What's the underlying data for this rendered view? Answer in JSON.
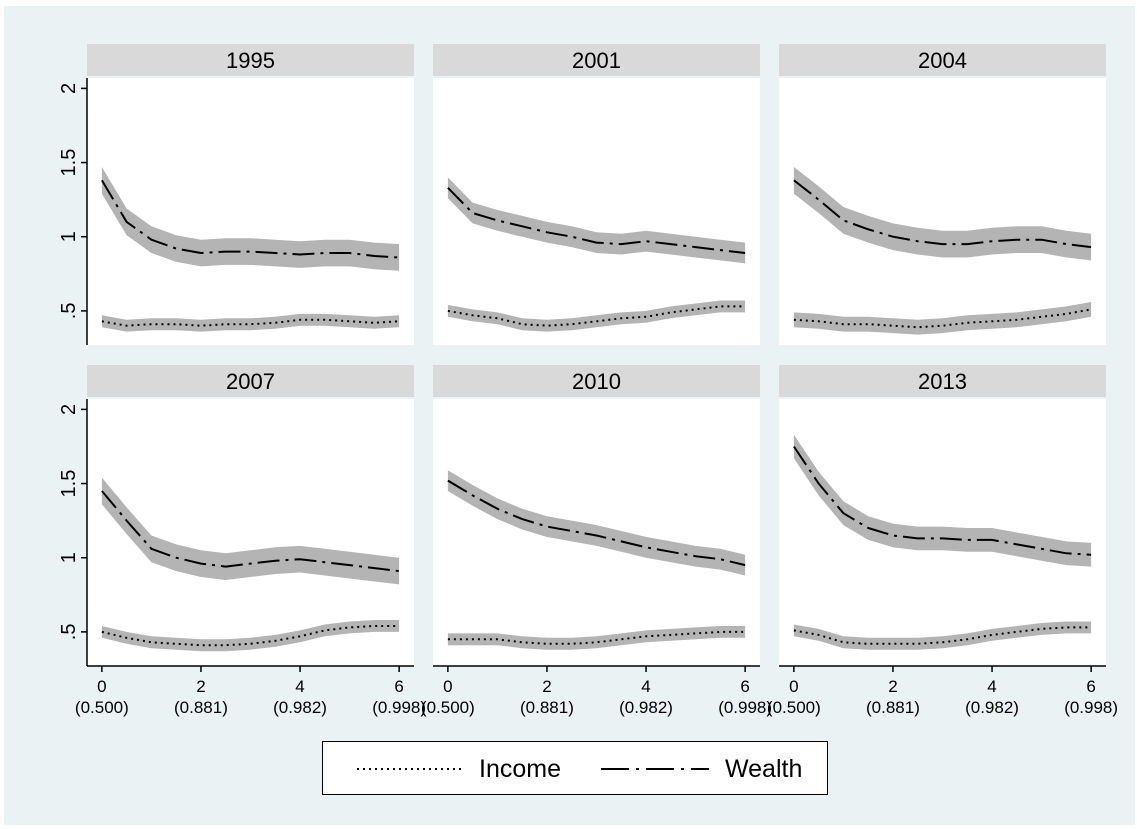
{
  "chart_data": {
    "type": "line",
    "layout": "small-multiples 2x3",
    "grid": false,
    "legend_position": "bottom",
    "colors": {
      "figure_background": "#eaf2f3",
      "panel_header": "#d9d9d9",
      "ci_band": "#b4b4b4",
      "line": "#000000"
    },
    "y_ticks": [
      ".5",
      "1",
      "1.5",
      "2"
    ],
    "y_tick_values": [
      0.5,
      1,
      1.5,
      2
    ],
    "ylim": [
      0.27,
      2.07
    ],
    "x_ticks": [
      {
        "value": 0,
        "label": "0",
        "sublabel": "(0.500)"
      },
      {
        "value": 2,
        "label": "2",
        "sublabel": "(0.881)"
      },
      {
        "value": 4,
        "label": "4",
        "sublabel": "(0.982)"
      },
      {
        "value": 6,
        "label": "6",
        "sublabel": "(0.998)"
      }
    ],
    "xlim": [
      -0.3,
      6.3
    ],
    "x": [
      0,
      0.5,
      1,
      1.5,
      2,
      2.5,
      3,
      3.5,
      4,
      4.5,
      5,
      5.5,
      6
    ],
    "legend": [
      {
        "name": "Income",
        "style": "dotted"
      },
      {
        "name": "Wealth",
        "style": "long-dash-dot"
      }
    ],
    "panels": [
      {
        "title": "1995",
        "wealth": [
          1.38,
          1.1,
          0.98,
          0.92,
          0.89,
          0.9,
          0.9,
          0.89,
          0.88,
          0.89,
          0.89,
          0.87,
          0.86
        ],
        "wealth_band": 0.09,
        "income": [
          0.43,
          0.4,
          0.41,
          0.41,
          0.4,
          0.41,
          0.41,
          0.42,
          0.44,
          0.44,
          0.43,
          0.42,
          0.43
        ],
        "income_band": 0.04
      },
      {
        "title": "2001",
        "wealth": [
          1.33,
          1.16,
          1.11,
          1.07,
          1.03,
          1.0,
          0.96,
          0.95,
          0.97,
          0.95,
          0.93,
          0.91,
          0.89
        ],
        "wealth_band": 0.07,
        "income": [
          0.5,
          0.47,
          0.45,
          0.41,
          0.4,
          0.41,
          0.43,
          0.45,
          0.46,
          0.49,
          0.51,
          0.53,
          0.53
        ],
        "income_band": 0.04
      },
      {
        "title": "2004",
        "wealth": [
          1.38,
          1.25,
          1.11,
          1.05,
          1.0,
          0.97,
          0.95,
          0.95,
          0.97,
          0.98,
          0.98,
          0.95,
          0.93
        ],
        "wealth_band": 0.09,
        "income": [
          0.44,
          0.43,
          0.41,
          0.41,
          0.4,
          0.39,
          0.4,
          0.42,
          0.43,
          0.44,
          0.46,
          0.48,
          0.51
        ],
        "income_band": 0.05
      },
      {
        "title": "2007",
        "wealth": [
          1.45,
          1.25,
          1.06,
          1.0,
          0.96,
          0.94,
          0.96,
          0.98,
          0.99,
          0.97,
          0.95,
          0.93,
          0.91
        ],
        "wealth_band": 0.09,
        "income": [
          0.5,
          0.46,
          0.43,
          0.42,
          0.41,
          0.41,
          0.42,
          0.44,
          0.47,
          0.51,
          0.53,
          0.54,
          0.54
        ],
        "income_band": 0.04
      },
      {
        "title": "2010",
        "wealth": [
          1.52,
          1.42,
          1.33,
          1.26,
          1.21,
          1.18,
          1.15,
          1.11,
          1.07,
          1.04,
          1.01,
          0.99,
          0.95
        ],
        "wealth_band": 0.07,
        "income": [
          0.45,
          0.45,
          0.45,
          0.43,
          0.42,
          0.42,
          0.43,
          0.45,
          0.47,
          0.48,
          0.49,
          0.5,
          0.5
        ],
        "income_band": 0.04
      },
      {
        "title": "2013",
        "wealth": [
          1.75,
          1.5,
          1.3,
          1.2,
          1.15,
          1.13,
          1.13,
          1.12,
          1.12,
          1.09,
          1.06,
          1.03,
          1.02
        ],
        "wealth_band": 0.08,
        "income": [
          0.51,
          0.48,
          0.43,
          0.42,
          0.42,
          0.42,
          0.43,
          0.45,
          0.48,
          0.5,
          0.52,
          0.53,
          0.53
        ],
        "income_band": 0.04
      }
    ]
  }
}
